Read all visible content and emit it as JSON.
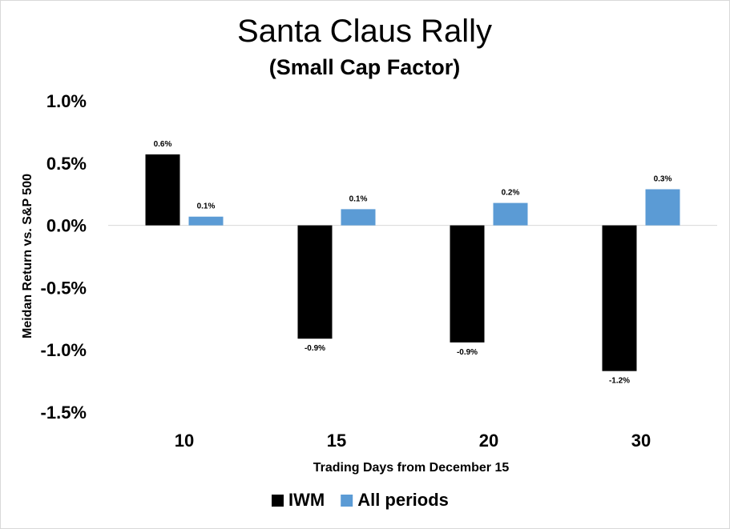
{
  "chart_data": {
    "type": "bar",
    "title": "Santa Claus Rally",
    "subtitle": "(Small Cap Factor)",
    "xlabel": "Trading Days from December 15",
    "ylabel": "Meidan Return vs. S&P 500",
    "categories": [
      "10",
      "15",
      "20",
      "30"
    ],
    "ylim": [
      -1.5,
      1.0
    ],
    "yticks": [
      1.0,
      0.5,
      0.0,
      -0.5,
      -1.0,
      -1.5
    ],
    "ytick_labels": [
      "1.0%",
      "0.5%",
      "0.0%",
      "-0.5%",
      "-1.0%",
      "-1.5%"
    ],
    "grid": false,
    "legend_position": "bottom",
    "series": [
      {
        "name": "IWM",
        "color": "#000000",
        "values": [
          0.57,
          -0.91,
          -0.94,
          -1.17
        ],
        "labels": [
          "0.6%",
          "-0.9%",
          "-0.9%",
          "-1.2%"
        ]
      },
      {
        "name": "All periods",
        "color": "#5B9BD5",
        "values": [
          0.07,
          0.13,
          0.18,
          0.29
        ],
        "labels": [
          "0.1%",
          "0.1%",
          "0.2%",
          "0.3%"
        ]
      }
    ]
  }
}
